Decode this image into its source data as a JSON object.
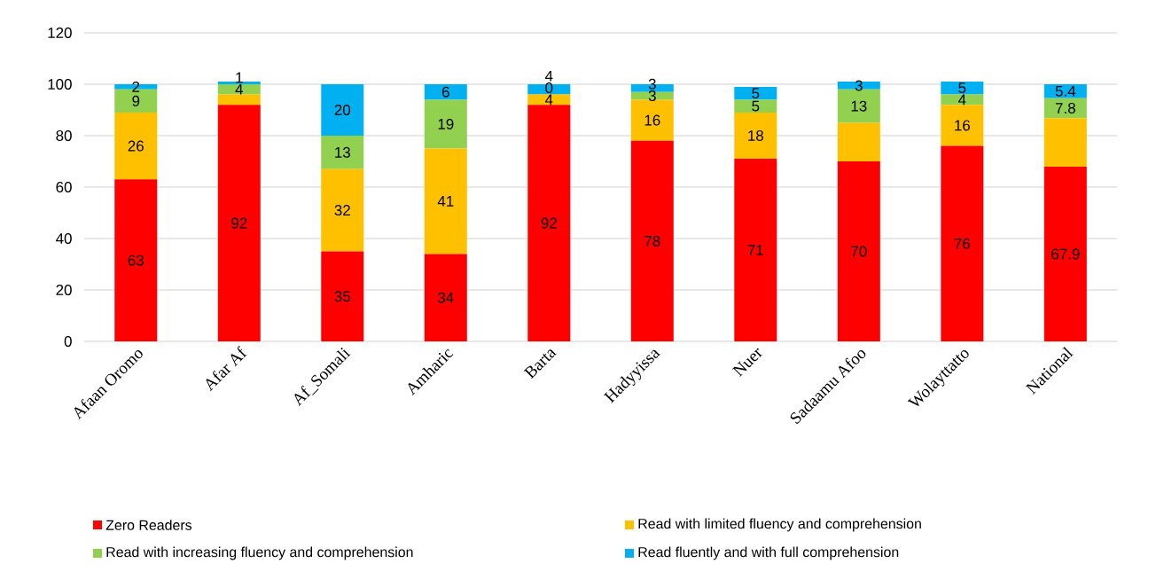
{
  "chart_data": {
    "type": "bar",
    "stacked": true,
    "categories": [
      "Afaan Oromo",
      "Afar Af",
      "Af_Somali",
      "Amharic",
      "Barta",
      "Hadyyissa",
      "Nuer",
      "Sadaamu Afoo",
      "Wolayttatto",
      "National"
    ],
    "series": [
      {
        "name": "Zero Readers",
        "color": "#ff0000",
        "values": [
          63,
          92,
          35,
          34,
          92,
          78,
          71,
          70,
          76,
          67.9
        ],
        "value_labels": [
          "63",
          "92",
          "35",
          "34",
          "92",
          "78",
          "71",
          "70",
          "76",
          "67.9"
        ]
      },
      {
        "name": "Read with limited fluency and comprehension",
        "color": "#ffc000",
        "values": [
          26,
          4,
          32,
          41,
          4,
          16,
          18,
          15,
          16,
          18.9
        ],
        "value_labels": [
          "26",
          null,
          "32",
          "41",
          "4",
          "16",
          "18",
          null,
          "16",
          null
        ]
      },
      {
        "name": "Read with increasing fluency and comprehension",
        "color": "#92d050",
        "values": [
          9,
          4,
          13,
          19,
          0,
          3,
          5,
          13,
          4,
          7.8
        ],
        "value_labels": [
          "9",
          "4",
          "13",
          "19",
          "0",
          "3",
          "5",
          "13",
          "4",
          "7.8"
        ]
      },
      {
        "name": "Read fluently and with full comprehension",
        "color": "#00b0f0",
        "values": [
          2,
          1,
          20,
          6,
          4,
          3,
          5,
          3,
          5,
          5.4
        ],
        "value_labels": [
          "2",
          "1",
          "20",
          "6",
          "4",
          "3",
          "5",
          "3",
          "5",
          "5.4"
        ]
      }
    ],
    "ylim": [
      0,
      120
    ],
    "yticks": [
      0,
      20,
      40,
      60,
      80,
      100,
      120
    ],
    "grid": "y",
    "legend": "bottom"
  }
}
